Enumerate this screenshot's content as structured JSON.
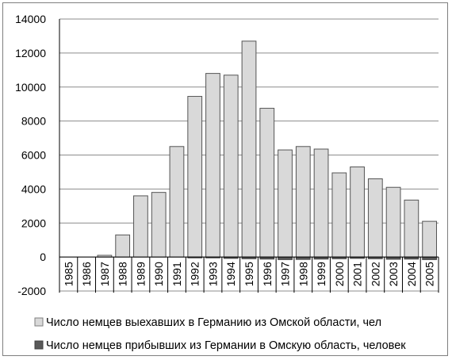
{
  "chart_data": {
    "type": "bar",
    "categories": [
      "1985",
      "1986",
      "1987",
      "1988",
      "1989",
      "1990",
      "1991",
      "1992",
      "1993",
      "1994",
      "1995",
      "1996",
      "1997",
      "1998",
      "1999",
      "2000",
      "2001",
      "2002",
      "2003",
      "2004",
      "2005"
    ],
    "series": [
      {
        "name": "Число немцев выехавших в Германию из Омской области, чел",
        "color": "#d9d9d9",
        "values": [
          0,
          0,
          100,
          1300,
          3600,
          3800,
          6500,
          9450,
          10800,
          10700,
          12700,
          8750,
          6300,
          6500,
          6350,
          4950,
          5300,
          4600,
          4100,
          3350,
          2100
        ]
      },
      {
        "name": "Число немцев прибывших из Германии в Омскую область, человек",
        "color": "#595959",
        "values": [
          0,
          0,
          0,
          0,
          0,
          0,
          0,
          -50,
          -50,
          -80,
          -100,
          -120,
          -150,
          -140,
          -120,
          -100,
          -80,
          -100,
          -130,
          -120,
          -150
        ]
      }
    ],
    "ylim": [
      -2000,
      14000
    ],
    "yticks": [
      "-2000",
      "0",
      "2000",
      "4000",
      "6000",
      "8000",
      "10000",
      "12000",
      "14000"
    ],
    "ytick_values": [
      -2000,
      0,
      2000,
      4000,
      6000,
      8000,
      10000,
      12000,
      14000
    ],
    "grid": true,
    "legend_position": "bottom"
  }
}
